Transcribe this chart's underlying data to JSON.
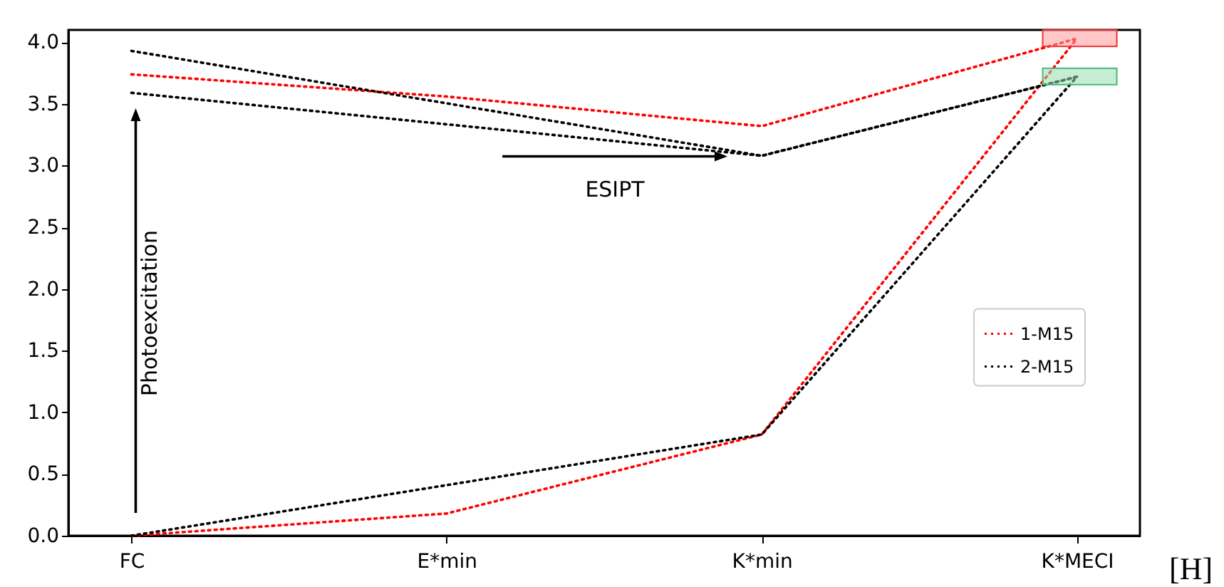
{
  "chart_data": {
    "type": "line",
    "xlabel": "[H]",
    "categories": [
      "FC",
      "E*min",
      "K*min",
      "K*MECI"
    ],
    "series": [
      {
        "name": "1-M15",
        "color": "#ff0000",
        "values": [
          3.74,
          3.56,
          3.32,
          4.03
        ]
      },
      {
        "color": "#ff0000",
        "values": [
          0,
          0.18,
          0.82,
          4.03
        ]
      },
      {
        "name": "2-M15",
        "color": "#000000",
        "x": [
          "FC",
          "K*min",
          "K*MECI"
        ],
        "values": [
          3.93,
          3.08,
          3.72
        ]
      },
      {
        "color": "#000000",
        "x": [
          "FC",
          "K*min",
          "K*MECI"
        ],
        "values": [
          3.59,
          3.08,
          3.72
        ]
      },
      {
        "color": "#000000",
        "x": [
          "FC",
          "K*min",
          "K*MECI"
        ],
        "values": [
          0,
          0.82,
          3.72
        ]
      }
    ],
    "ylim": [
      0,
      4.1
    ],
    "yticks": [
      {
        "value": 0,
        "label": "0.0"
      },
      {
        "value": 0.5,
        "label": "0.5"
      },
      {
        "value": 1,
        "label": "1.0"
      },
      {
        "value": 1.5,
        "label": "1.5"
      },
      {
        "value": 2,
        "label": "2.0"
      },
      {
        "value": 2.5,
        "label": "2.5"
      },
      {
        "value": 3,
        "label": "3.0"
      },
      {
        "value": 3.5,
        "label": "3.5"
      },
      {
        "value": 4,
        "label": "4.0"
      }
    ],
    "annotations": [
      "Photoexcitation",
      "ESIPT"
    ],
    "line_style": "dotted",
    "legend": "right",
    "grid": false
  }
}
